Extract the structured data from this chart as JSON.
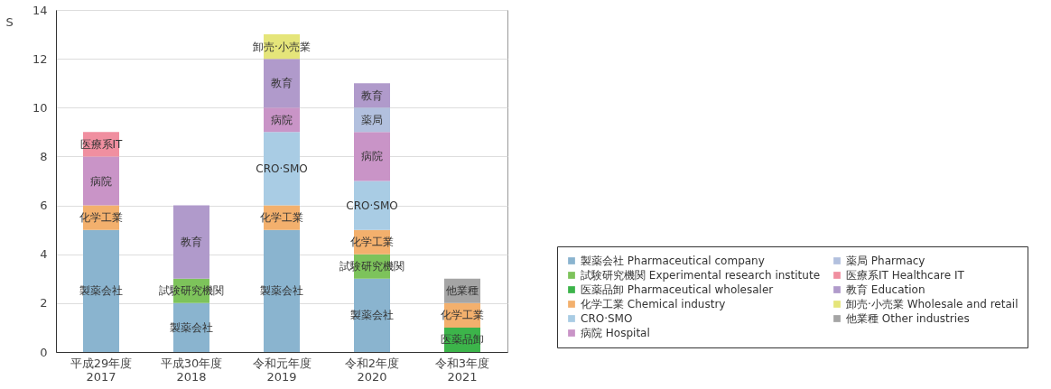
{
  "chart_data": {
    "type": "bar",
    "stacked": true,
    "ylabel": "S",
    "categories": [
      "平成29年度\n2017",
      "平成30年度\n2018",
      "令和元年度\n2019",
      "令和2年度\n2020",
      "令和3年度\n2021"
    ],
    "ylim": [
      0,
      14
    ],
    "yticks": [
      0,
      2,
      4,
      6,
      8,
      10,
      12,
      14
    ],
    "grid": "y",
    "legend": "bottom right",
    "series": [
      {
        "name": "製薬会社 Pharmaceutical company",
        "color": "#8ab4cf",
        "values": [
          5,
          2,
          5,
          3,
          null
        ],
        "value_labels": [
          "製薬会社",
          "製薬会社",
          "製薬会社",
          "製薬会社",
          null
        ]
      },
      {
        "name": "試験研究機関 Experimental research institute",
        "color": "#7dc35b",
        "values": [
          null,
          1,
          null,
          1,
          null
        ],
        "value_labels": [
          null,
          "試験研究機関",
          null,
          "試験研究機関",
          null
        ]
      },
      {
        "name": "医薬品卸 Pharmaceutical wholesaler",
        "color": "#3cb44a",
        "values": [
          null,
          null,
          null,
          null,
          1
        ],
        "value_labels": [
          null,
          null,
          null,
          null,
          "医薬品卸"
        ]
      },
      {
        "name": "化学工業 Chemical industry",
        "color": "#f3b06d",
        "values": [
          1,
          null,
          1,
          1,
          1
        ],
        "value_labels": [
          "化学工業",
          null,
          "化学工業",
          "化学工業",
          "化学工業"
        ]
      },
      {
        "name": "CRO·SMO",
        "color": "#a9cce4",
        "values": [
          null,
          null,
          3,
          2,
          null
        ],
        "value_labels": [
          null,
          null,
          "CRO·SMO",
          "CRO·SMO",
          null
        ]
      },
      {
        "name": "病院 Hospital",
        "color": "#c994c7",
        "values": [
          2,
          null,
          1,
          2,
          null
        ],
        "value_labels": [
          "病院",
          null,
          "病院",
          "病院",
          null
        ]
      },
      {
        "name": "薬局 Pharmacy",
        "color": "#b2c0de",
        "values": [
          null,
          null,
          null,
          1,
          null
        ],
        "value_labels": [
          null,
          null,
          null,
          "薬局",
          null
        ]
      },
      {
        "name": "医療系IT Healthcare IT",
        "color": "#f08fa0",
        "values": [
          1,
          null,
          null,
          null,
          null
        ],
        "value_labels": [
          "医療系IT",
          null,
          null,
          null,
          null
        ]
      },
      {
        "name": "教育 Education",
        "color": "#b09acb",
        "values": [
          null,
          3,
          2,
          1,
          null
        ],
        "value_labels": [
          null,
          "教育",
          "教育",
          "教育",
          null
        ]
      },
      {
        "name": "卸売·小売業 Wholesale and retail",
        "color": "#e5e57a",
        "values": [
          null,
          null,
          1,
          null,
          null
        ],
        "value_labels": [
          null,
          null,
          "卸売·小売業",
          null,
          null
        ]
      },
      {
        "name": "他業種 Other industries",
        "color": "#a5a5a5",
        "values": [
          null,
          null,
          null,
          null,
          1
        ],
        "value_labels": [
          null,
          null,
          null,
          null,
          "他業種"
        ]
      }
    ]
  }
}
